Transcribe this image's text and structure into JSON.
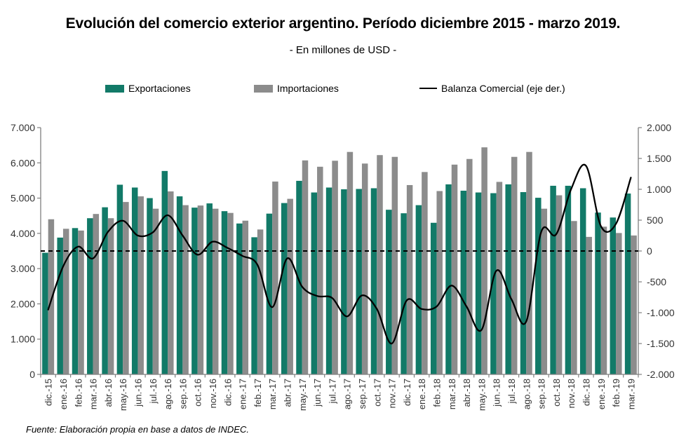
{
  "page": {
    "title": "Evolución del comercio exterior argentino. Período diciembre 2015 - marzo 2019.",
    "subtitle": "- En millones de USD -",
    "footer": "Fuente: Elaboración propia en base a datos de INDEC."
  },
  "legend": {
    "items": [
      {
        "label": "Exportaciones",
        "swatch": "bar",
        "color": "#127A68"
      },
      {
        "label": "Importaciones",
        "swatch": "bar",
        "color": "#8C8C8C"
      },
      {
        "label": "Balanza Comercial (eje der.)",
        "swatch": "line",
        "color": "#000000"
      }
    ]
  },
  "chart_data": {
    "type": "bar",
    "subtype": "grouped-bars-with-line-combo",
    "title": "Evolución del comercio exterior argentino. Período diciembre 2015 - marzo 2019.",
    "units": "millones de USD",
    "categories": [
      "dic.-15",
      "ene.-16",
      "feb.-16",
      "mar.-16",
      "abr.-16",
      "may.-16",
      "jun.-16",
      "jul.-16",
      "ago.-16",
      "sep.-16",
      "oct.-16",
      "nov.-16",
      "dic.-16",
      "ene.-17",
      "feb.-17",
      "mar.-17",
      "abr.-17",
      "may.-17",
      "jun.-17",
      "jul.-17",
      "ago.-17",
      "sep.-17",
      "oct.-17",
      "nov.-17",
      "dic.-17",
      "ene.-18",
      "feb.-18",
      "mar.-18",
      "abr.-18",
      "may.-18",
      "jun.-18",
      "jul.-18",
      "ago.-18",
      "sep.-18",
      "oct.-18",
      "nov.-18",
      "dic.-18",
      "ene.-19",
      "feb.-19",
      "mar.-19"
    ],
    "series": [
      {
        "name": "Exportaciones",
        "type": "bar",
        "axis": "left",
        "color": "#127A68",
        "values": [
          3450,
          3880,
          4150,
          4430,
          4740,
          5380,
          5300,
          5000,
          5770,
          5050,
          4730,
          4850,
          4630,
          4280,
          3890,
          4560,
          4860,
          5490,
          5160,
          5300,
          5250,
          5260,
          5280,
          4670,
          4570,
          4800,
          4300,
          5390,
          5210,
          5160,
          5140,
          5390,
          5170,
          5010,
          5350,
          5350,
          5280,
          4590,
          4450,
          5130
        ]
      },
      {
        "name": "Importaciones",
        "type": "bar",
        "axis": "left",
        "color": "#8C8C8C",
        "values": [
          4400,
          4130,
          4080,
          4550,
          4430,
          4890,
          5050,
          4700,
          5190,
          4800,
          4790,
          4700,
          4580,
          4360,
          4110,
          5470,
          4980,
          6070,
          5890,
          6060,
          6310,
          5980,
          6220,
          6170,
          5370,
          5740,
          5200,
          5950,
          6110,
          6440,
          5460,
          6170,
          6310,
          4700,
          5080,
          4350,
          3900,
          4190,
          4010,
          3940
        ]
      },
      {
        "name": "Balanza Comercial (eje der.)",
        "type": "line",
        "axis": "right",
        "color": "#000000",
        "smooth": true,
        "values": [
          -950,
          -250,
          70,
          -120,
          310,
          490,
          250,
          300,
          580,
          250,
          -60,
          150,
          50,
          -80,
          -220,
          -910,
          -120,
          -580,
          -730,
          -760,
          -1060,
          -720,
          -940,
          -1500,
          -800,
          -940,
          -900,
          -560,
          -900,
          -1280,
          -320,
          -780,
          -1140,
          310,
          270,
          1000,
          1380,
          400,
          440,
          1190
        ]
      }
    ],
    "left_axis": {
      "min": 0,
      "max": 7000,
      "step": 1000,
      "tick_labels": [
        "0",
        "1.000",
        "2.000",
        "3.000",
        "4.000",
        "5.000",
        "6.000",
        "7.000"
      ]
    },
    "right_axis": {
      "min": -2000,
      "max": 2000,
      "step": 500,
      "tick_labels": [
        "-2.000",
        "-1.500",
        "-1.000",
        "-500",
        "0",
        "500",
        "1.000",
        "1.500",
        "2.000"
      ]
    },
    "zero_line": {
      "axis": "right",
      "value": 0,
      "style": "dashed",
      "color": "#000000"
    },
    "grid": false,
    "legend_position": "top",
    "axis_line_color": "#808080",
    "tick_text_color": "#333333"
  }
}
